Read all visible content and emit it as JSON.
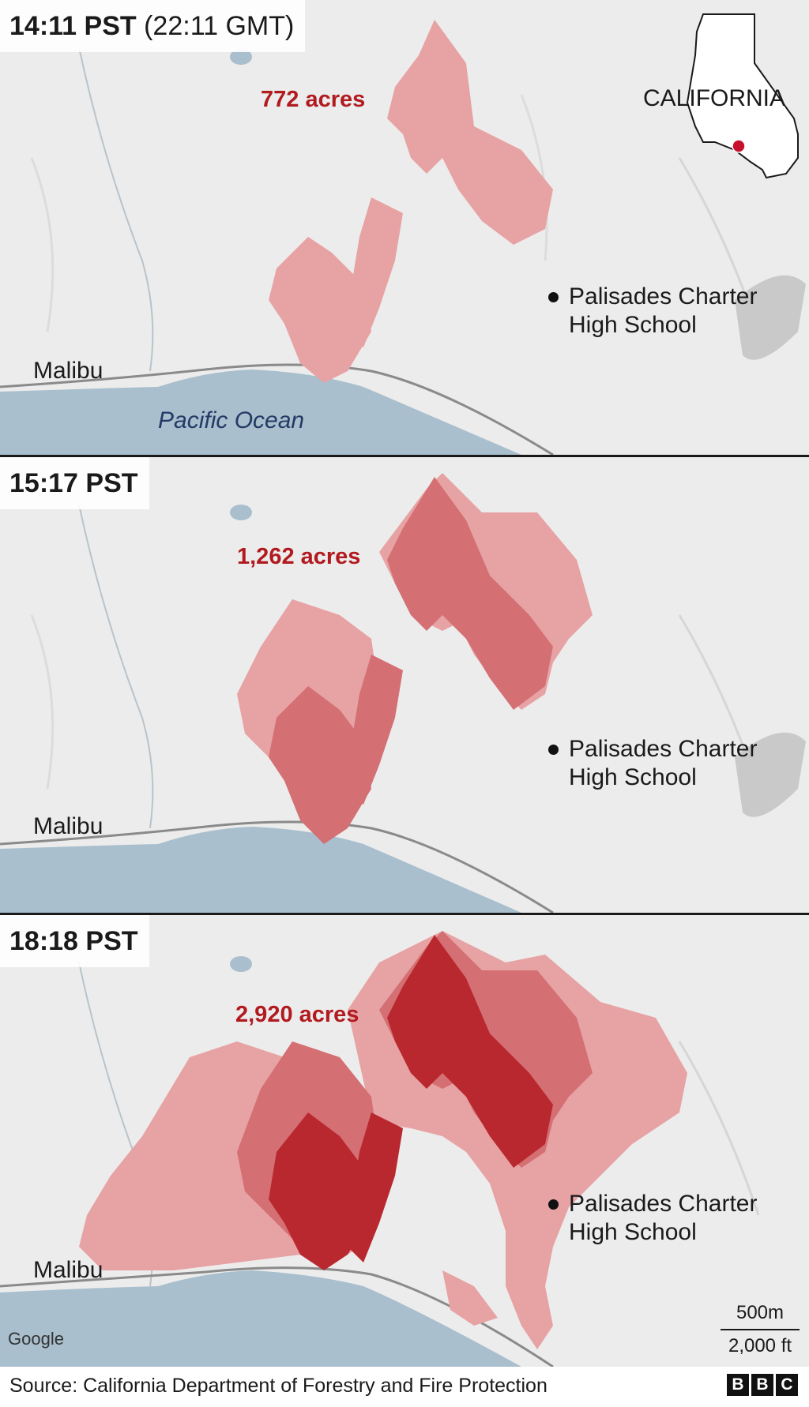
{
  "panels": [
    {
      "time_main": "14:11 PST",
      "time_extra": "(22:11 GMT)",
      "acres": "772 acres",
      "malibu": "Malibu",
      "school_line1": "Palisades Charter",
      "school_line2": "High School",
      "ocean": "Pacific Ocean",
      "inset_label": "CALIFORNIA"
    },
    {
      "time_main": "15:17 PST",
      "acres": "1,262 acres",
      "malibu": "Malibu",
      "school_line1": "Palisades Charter",
      "school_line2": "High School"
    },
    {
      "time_main": "18:18 PST",
      "acres": "2,920 acres",
      "malibu": "Malibu",
      "school_line1": "Palisades Charter",
      "school_line2": "High School",
      "google": "Google",
      "scale_top": "500m",
      "scale_bottom": "2,000 ft"
    }
  ],
  "footer": {
    "source": "Source: California Department of Forestry and Fire Protection",
    "logo_letters": [
      "B",
      "B",
      "C"
    ]
  },
  "colors": {
    "fire_light": "#e7a2a4",
    "fire_mid": "#d46f73",
    "fire_dark": "#b8282e",
    "ocean": "#a9bfcd",
    "land": "#ececec",
    "acres_text": "#b11a1f"
  }
}
